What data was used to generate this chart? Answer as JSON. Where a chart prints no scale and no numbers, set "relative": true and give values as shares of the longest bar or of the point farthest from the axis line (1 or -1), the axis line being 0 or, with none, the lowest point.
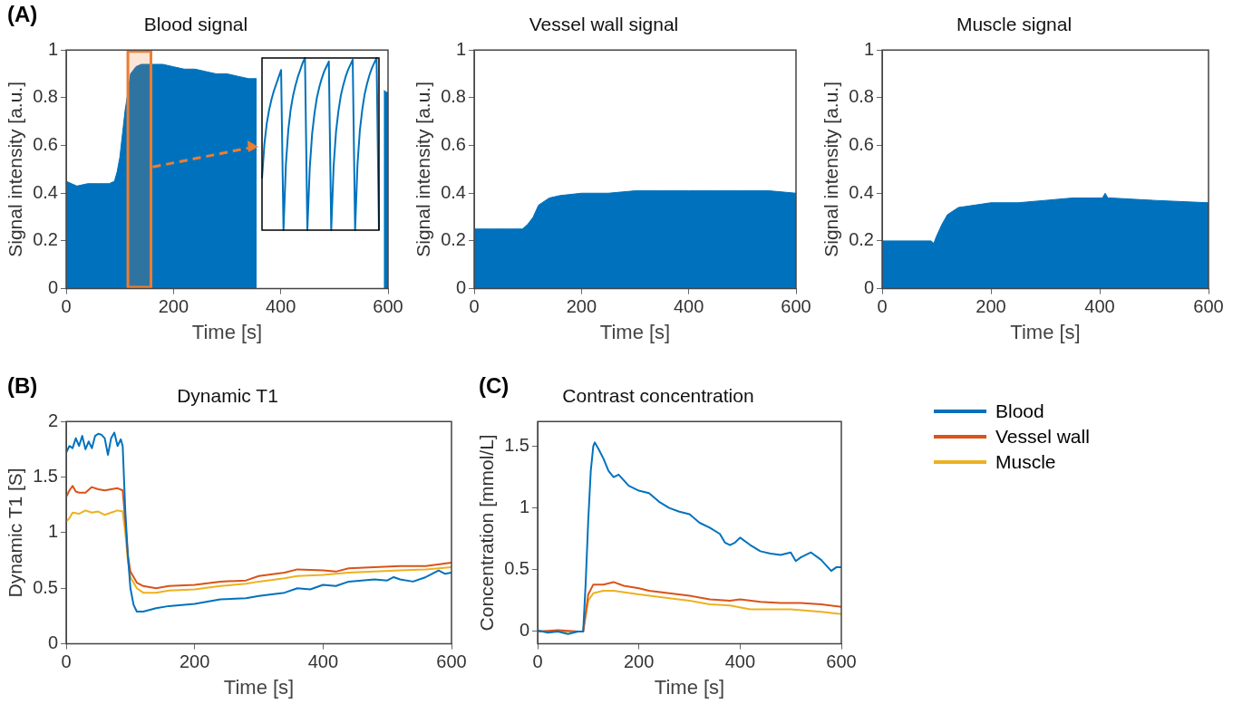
{
  "chart_data": [
    {
      "type": "area",
      "title": "Blood signal",
      "xlabel": "Time [s]",
      "ylabel": "Signal intensity [a.u.]",
      "annotations": [
        "(A)"
      ],
      "xlim": [
        0,
        600
      ],
      "xticks": [
        0,
        200,
        400,
        600
      ],
      "ylim": [
        0,
        1
      ],
      "yticks": [
        0,
        0.2,
        0.4,
        0.6,
        0.8,
        1
      ],
      "bands": [
        {
          "axis": "x",
          "from": 115,
          "to": 158,
          "color": "#ed7d31"
        }
      ],
      "series": [
        {
          "color": "#0072bd",
          "x": [
            0,
            10,
            20,
            40,
            60,
            80,
            90,
            95,
            100,
            105,
            110,
            115,
            120,
            130,
            140,
            160,
            180,
            200,
            220,
            240,
            260,
            280,
            300,
            320,
            340,
            355,
            360,
            592,
            600
          ],
          "values": [
            0.45,
            0.44,
            0.43,
            0.44,
            0.44,
            0.44,
            0.45,
            0.49,
            0.55,
            0.65,
            0.75,
            0.82,
            0.9,
            0.93,
            0.94,
            0.94,
            0.94,
            0.93,
            0.92,
            0.92,
            0.91,
            0.9,
            0.9,
            0.89,
            0.88,
            0.88,
            null,
            0.83,
            0.82
          ]
        }
      ]
    },
    {
      "type": "line",
      "relative": true,
      "categories": [
        null,
        null,
        null,
        null,
        null,
        null,
        null,
        null,
        null,
        null,
        null,
        null,
        null,
        null,
        null,
        null,
        null,
        null,
        null,
        null,
        null,
        null,
        null,
        null,
        null,
        null,
        null,
        null,
        null,
        null,
        null,
        null,
        null,
        null,
        null,
        null,
        null,
        null,
        null,
        null,
        null,
        null,
        null,
        null,
        null,
        null,
        null,
        null,
        null,
        null
      ],
      "series": [
        {
          "color": "#0072bd",
          "values": [
            0.3,
            0.5,
            0.62,
            0.7,
            0.76,
            0.81,
            0.85,
            0.89,
            0.93,
            0,
            0.38,
            0.58,
            0.7,
            0.78,
            0.84,
            0.89,
            0.93,
            0.97,
            1,
            0,
            0.36,
            0.56,
            0.68,
            0.77,
            0.83,
            0.88,
            0.92,
            0.95,
            0.98,
            0,
            0.37,
            0.57,
            0.69,
            0.78,
            0.84,
            0.89,
            0.93,
            0.96,
            0.99,
            0,
            0.38,
            0.58,
            0.7,
            0.79,
            0.85,
            0.9,
            0.94,
            0.97,
            1,
            0
          ]
        }
      ]
    },
    {
      "type": "area",
      "title": "Vessel wall signal",
      "xlabel": "Time [s]",
      "ylabel": "Signal intensity [a.u.]",
      "xlim": [
        0,
        600
      ],
      "xticks": [
        0,
        200,
        400,
        600
      ],
      "ylim": [
        0,
        1
      ],
      "yticks": [
        0,
        0.2,
        0.4,
        0.6,
        0.8,
        1
      ],
      "series": [
        {
          "color": "#0072bd",
          "x": [
            0,
            30,
            60,
            90,
            100,
            110,
            120,
            140,
            160,
            200,
            250,
            300,
            350,
            400,
            450,
            500,
            550,
            600
          ],
          "values": [
            0.25,
            0.25,
            0.25,
            0.25,
            0.27,
            0.3,
            0.35,
            0.38,
            0.39,
            0.4,
            0.4,
            0.41,
            0.41,
            0.41,
            0.41,
            0.41,
            0.41,
            0.4
          ]
        }
      ]
    },
    {
      "type": "area",
      "title": "Muscle signal",
      "xlabel": "Time [s]",
      "ylabel": "Signal intensity [a.u.]",
      "xlim": [
        0,
        600
      ],
      "xticks": [
        0,
        200,
        400,
        600
      ],
      "ylim": [
        0,
        1
      ],
      "yticks": [
        0,
        0.2,
        0.4,
        0.6,
        0.8,
        1
      ],
      "series": [
        {
          "color": "#0072bd",
          "x": [
            0,
            30,
            60,
            90,
            95,
            100,
            110,
            120,
            140,
            200,
            250,
            300,
            350,
            400,
            405,
            410,
            415,
            420,
            500,
            600
          ],
          "values": [
            0.2,
            0.2,
            0.2,
            0.2,
            0.19,
            0.22,
            0.27,
            0.31,
            0.34,
            0.36,
            0.36,
            0.37,
            0.38,
            0.38,
            0.38,
            0.4,
            0.38,
            0.38,
            0.37,
            0.36
          ]
        }
      ]
    },
    {
      "type": "line",
      "title": "Dynamic T1",
      "xlabel": "Time [s]",
      "ylabel": "Dynamic T1 [S]",
      "annotations": [
        "(B)"
      ],
      "xlim": [
        0,
        600
      ],
      "xticks": [
        0,
        200,
        400,
        600
      ],
      "ylim": [
        0,
        2
      ],
      "yticks": [
        0,
        0.5,
        1,
        1.5,
        2
      ],
      "series": [
        {
          "color": "#0072bd",
          "x": [
            0,
            5,
            10,
            15,
            20,
            25,
            30,
            35,
            40,
            45,
            50,
            55,
            60,
            65,
            70,
            75,
            80,
            85,
            88,
            92,
            96,
            100,
            105,
            110,
            120,
            140,
            160,
            200,
            240,
            280,
            300,
            340,
            360,
            380,
            400,
            420,
            440,
            460,
            480,
            500,
            510,
            520,
            540,
            560,
            580,
            590,
            600
          ],
          "values": [
            1.72,
            1.78,
            1.76,
            1.85,
            1.78,
            1.87,
            1.75,
            1.82,
            1.76,
            1.87,
            1.89,
            1.88,
            1.85,
            1.7,
            1.85,
            1.9,
            1.78,
            1.84,
            1.78,
            1.2,
            0.8,
            0.5,
            0.35,
            0.29,
            0.29,
            0.32,
            0.34,
            0.36,
            0.4,
            0.41,
            0.43,
            0.46,
            0.5,
            0.49,
            0.53,
            0.52,
            0.56,
            0.57,
            0.58,
            0.57,
            0.6,
            0.58,
            0.56,
            0.6,
            0.66,
            0.63,
            0.64
          ]
        },
        {
          "color": "#d95319",
          "x": [
            0,
            5,
            10,
            15,
            20,
            30,
            40,
            50,
            60,
            70,
            80,
            88,
            92,
            96,
            100,
            110,
            120,
            140,
            160,
            200,
            240,
            280,
            300,
            340,
            360,
            400,
            420,
            440,
            480,
            520,
            560,
            600
          ],
          "values": [
            1.32,
            1.38,
            1.42,
            1.37,
            1.36,
            1.36,
            1.41,
            1.39,
            1.38,
            1.39,
            1.4,
            1.38,
            1.1,
            0.8,
            0.65,
            0.55,
            0.52,
            0.5,
            0.52,
            0.53,
            0.56,
            0.57,
            0.61,
            0.64,
            0.67,
            0.66,
            0.65,
            0.68,
            0.69,
            0.7,
            0.7,
            0.73
          ]
        },
        {
          "color": "#edb120",
          "x": [
            0,
            5,
            10,
            20,
            30,
            40,
            50,
            60,
            70,
            80,
            88,
            92,
            96,
            100,
            110,
            120,
            140,
            160,
            200,
            240,
            280,
            300,
            340,
            360,
            400,
            440,
            480,
            520,
            560,
            600
          ],
          "values": [
            1.1,
            1.13,
            1.18,
            1.17,
            1.2,
            1.18,
            1.19,
            1.16,
            1.18,
            1.2,
            1.19,
            1,
            0.75,
            0.6,
            0.5,
            0.46,
            0.46,
            0.48,
            0.49,
            0.52,
            0.54,
            0.56,
            0.59,
            0.61,
            0.62,
            0.64,
            0.65,
            0.66,
            0.67,
            0.69
          ]
        }
      ]
    },
    {
      "type": "line",
      "title": "Contrast concentration",
      "xlabel": "Time [s]",
      "ylabel": "Concentration [mmol/L]",
      "annotations": [
        "(C)"
      ],
      "legend": "right",
      "xlim": [
        0,
        600
      ],
      "xticks": [
        0,
        200,
        400,
        600
      ],
      "ylim": [
        -0.1,
        1.7
      ],
      "yticks": [
        0,
        0.5,
        1,
        1.5
      ],
      "series": [
        {
          "name": "Blood",
          "color": "#0072bd",
          "x": [
            0,
            20,
            40,
            60,
            80,
            90,
            95,
            100,
            105,
            110,
            113,
            120,
            130,
            140,
            150,
            160,
            180,
            200,
            220,
            240,
            260,
            280,
            300,
            320,
            340,
            360,
            370,
            380,
            390,
            400,
            420,
            440,
            460,
            480,
            500,
            510,
            520,
            540,
            560,
            580,
            590,
            600
          ],
          "values": [
            0.01,
            -0.01,
            0,
            -0.02,
            0,
            0,
            0.4,
            0.9,
            1.3,
            1.5,
            1.53,
            1.48,
            1.4,
            1.3,
            1.25,
            1.27,
            1.18,
            1.14,
            1.12,
            1.05,
            1,
            0.97,
            0.95,
            0.88,
            0.84,
            0.79,
            0.72,
            0.7,
            0.72,
            0.76,
            0.7,
            0.65,
            0.63,
            0.62,
            0.64,
            0.57,
            0.6,
            0.64,
            0.58,
            0.49,
            0.52,
            0.52
          ]
        },
        {
          "name": "Vessel wall",
          "color": "#d95319",
          "x": [
            0,
            40,
            80,
            90,
            100,
            110,
            130,
            150,
            170,
            200,
            220,
            260,
            300,
            340,
            380,
            400,
            440,
            480,
            520,
            560,
            600
          ],
          "values": [
            0,
            0.01,
            0,
            0,
            0.3,
            0.38,
            0.38,
            0.4,
            0.37,
            0.35,
            0.33,
            0.31,
            0.29,
            0.26,
            0.25,
            0.26,
            0.24,
            0.23,
            0.23,
            0.22,
            0.2
          ]
        },
        {
          "name": "Muscle",
          "color": "#edb120",
          "x": [
            0,
            40,
            80,
            90,
            100,
            110,
            130,
            150,
            200,
            260,
            300,
            340,
            380,
            420,
            460,
            500,
            560,
            600
          ],
          "values": [
            0,
            0,
            0,
            0,
            0.25,
            0.31,
            0.33,
            0.33,
            0.3,
            0.27,
            0.25,
            0.22,
            0.21,
            0.18,
            0.18,
            0.18,
            0.16,
            0.14
          ]
        }
      ]
    }
  ]
}
